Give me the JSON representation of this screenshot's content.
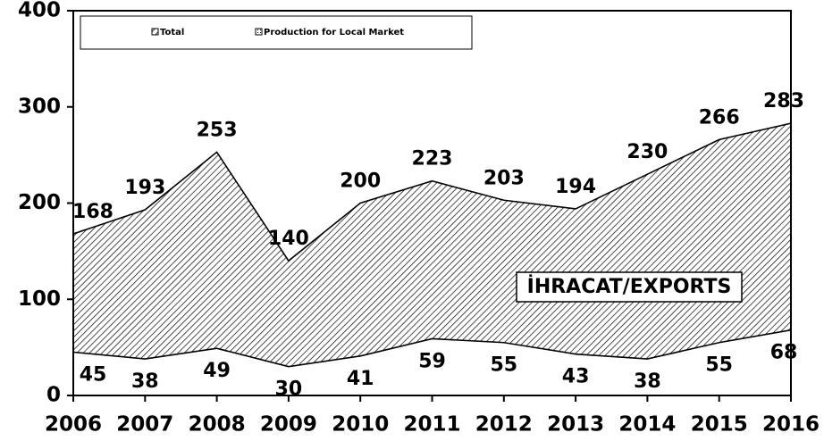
{
  "chart_data": {
    "type": "area",
    "categories": [
      "2006",
      "2007",
      "2008",
      "2009",
      "2010",
      "2011",
      "2012",
      "2013",
      "2014",
      "2015",
      "2016"
    ],
    "series": [
      {
        "name": "Total",
        "color": "#000000",
        "values": [
          168,
          193,
          253,
          140,
          200,
          223,
          203,
          194,
          230,
          266,
          283
        ]
      },
      {
        "name": "Production for Local Market",
        "color": "#ffffff",
        "values": [
          45,
          38,
          49,
          30,
          41,
          59,
          55,
          43,
          38,
          55,
          68
        ]
      }
    ],
    "ylim": [
      0,
      400
    ],
    "yticks": [
      0,
      100,
      200,
      300,
      400
    ],
    "annotation": "İHRACAT/EXPORTS",
    "legend": "top"
  }
}
